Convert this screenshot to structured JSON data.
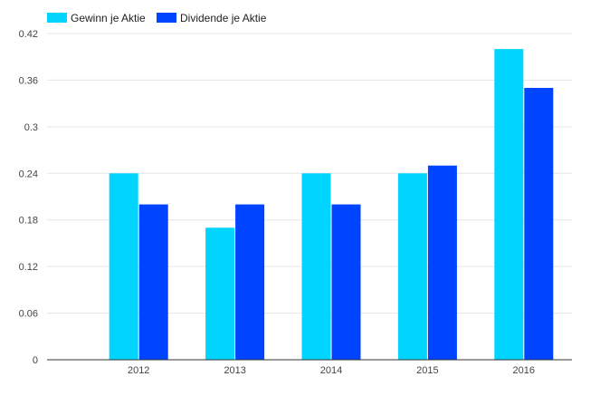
{
  "chart_data": {
    "type": "bar",
    "categories": [
      "2012",
      "2013",
      "2014",
      "2015",
      "2016"
    ],
    "series": [
      {
        "name": "Gewinn je Aktie",
        "color": "#00d4ff",
        "values": [
          0.24,
          0.17,
          0.24,
          0.24,
          0.4
        ]
      },
      {
        "name": "Dividende je Aktie",
        "color": "#0044ff",
        "values": [
          0.2,
          0.2,
          0.2,
          0.25,
          0.35
        ]
      }
    ],
    "yticks": [
      "0",
      "0.06",
      "0.12",
      "0.18",
      "0.24",
      "0.3",
      "0.36",
      "0.42"
    ],
    "ylim": [
      0,
      0.42
    ],
    "grid": true,
    "legend_position": "top-left"
  }
}
